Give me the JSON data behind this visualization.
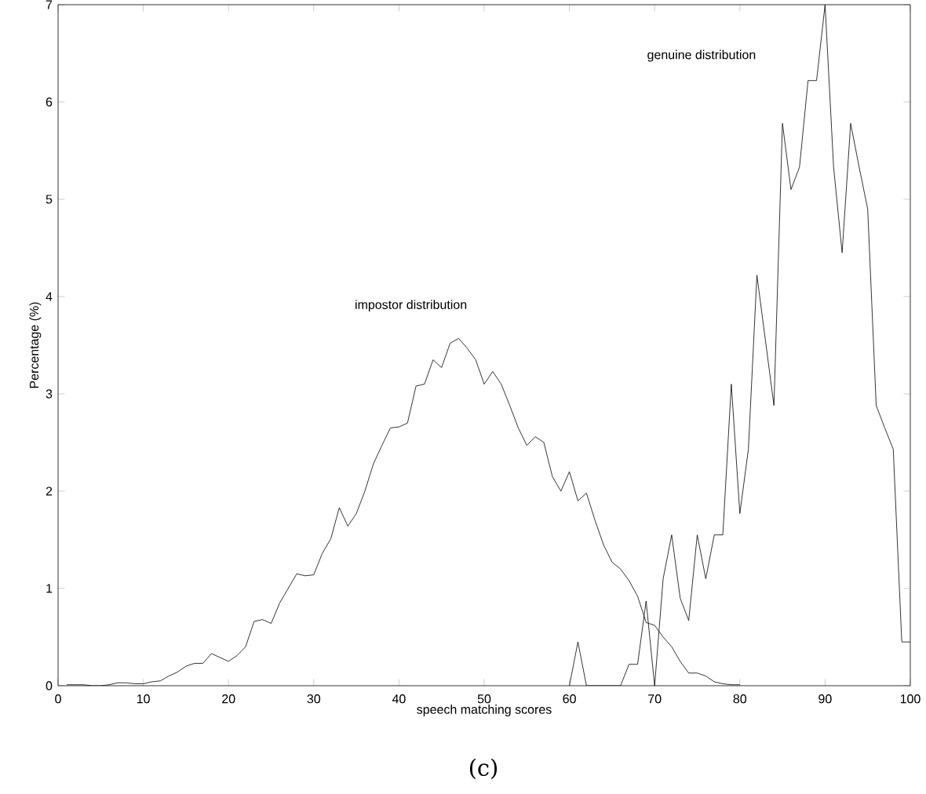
{
  "chart_data": {
    "type": "line",
    "xlabel": "speech matching scores",
    "ylabel": "Percentage (%)",
    "xlim": [
      0,
      100
    ],
    "ylim": [
      0,
      7
    ],
    "xticks": [
      0,
      10,
      20,
      30,
      40,
      50,
      60,
      70,
      80,
      90,
      100
    ],
    "yticks": [
      0,
      1,
      2,
      3,
      4,
      5,
      6,
      7
    ],
    "grid": false,
    "marker": "none",
    "line_style": "solid",
    "series": [
      {
        "color": "#000000",
        "x": [
          1,
          2,
          3,
          4,
          5,
          6,
          7,
          8,
          9,
          10,
          11,
          12,
          13,
          14,
          15,
          16,
          17,
          18,
          19,
          20,
          21,
          22,
          23,
          24,
          25,
          26,
          27,
          28,
          29,
          30,
          31,
          32,
          33,
          34,
          35,
          36,
          37,
          38,
          39,
          40,
          41,
          42,
          43,
          44,
          45,
          46,
          47,
          48,
          49,
          50,
          51,
          52,
          53,
          54,
          55,
          56,
          57,
          58,
          59,
          60,
          61,
          62,
          63,
          64,
          65,
          66,
          67,
          68,
          69,
          70,
          71,
          72,
          73,
          74,
          75,
          76,
          77,
          78,
          79,
          80
        ],
        "values": [
          0.01,
          0.01,
          0.01,
          0,
          0,
          0.01,
          0.03,
          0.03,
          0.02,
          0.02,
          0.04,
          0.05,
          0.1,
          0.14,
          0.2,
          0.23,
          0.23,
          0.33,
          0.29,
          0.25,
          0.31,
          0.4,
          0.66,
          0.68,
          0.64,
          0.85,
          1.0,
          1.15,
          1.13,
          1.14,
          1.36,
          1.51,
          1.83,
          1.64,
          1.77,
          2.0,
          2.28,
          2.47,
          2.65,
          2.66,
          2.7,
          3.08,
          3.1,
          3.35,
          3.27,
          3.52,
          3.57,
          3.47,
          3.35,
          3.1,
          3.23,
          3.1,
          2.88,
          2.65,
          2.47,
          2.56,
          2.5,
          2.15,
          2.0,
          2.2,
          1.9,
          1.98,
          1.7,
          1.45,
          1.27,
          1.2,
          1.08,
          0.92,
          0.65,
          0.62,
          0.5,
          0.4,
          0.25,
          0.13,
          0.13,
          0.1,
          0.04,
          0.02,
          0.01,
          0.01
        ]
      },
      {
        "color": "#000000",
        "x": [
          60,
          61,
          62,
          63,
          64,
          65,
          66,
          67,
          68,
          69,
          70,
          71,
          72,
          73,
          74,
          75,
          76,
          77,
          78,
          79,
          80,
          81,
          82,
          83,
          84,
          85,
          86,
          87,
          88,
          89,
          90,
          91,
          92,
          93,
          94,
          95,
          96,
          97,
          98,
          99,
          100
        ],
        "values": [
          0,
          0.45,
          0,
          0,
          0,
          0,
          0,
          0.22,
          0.22,
          0.87,
          0,
          1.1,
          1.55,
          0.9,
          0.67,
          1.55,
          1.1,
          1.55,
          1.55,
          3.1,
          1.77,
          2.43,
          4.22,
          3.55,
          2.88,
          5.78,
          5.1,
          5.33,
          6.22,
          6.22,
          7.0,
          5.33,
          4.45,
          5.78,
          5.33,
          4.9,
          2.88,
          2.65,
          2.43,
          0.45,
          0.45
        ]
      }
    ],
    "annotations": [
      "impostor distribution",
      "genuine distribution",
      "(c)"
    ]
  }
}
